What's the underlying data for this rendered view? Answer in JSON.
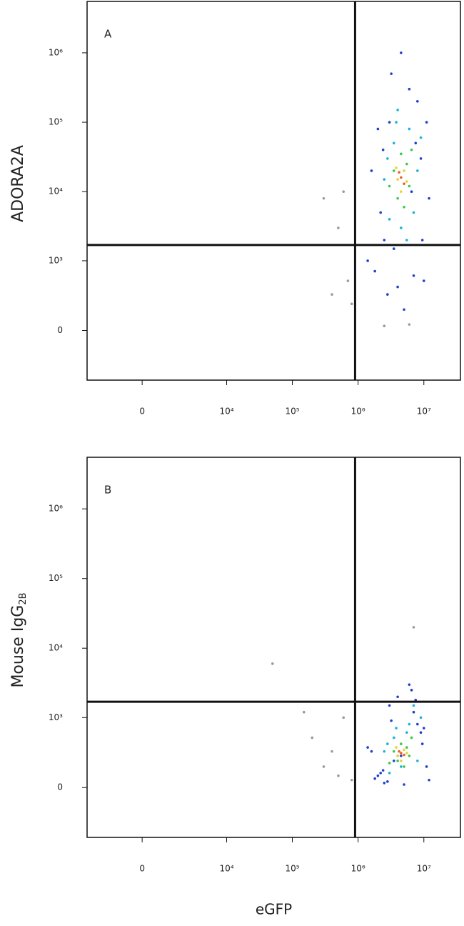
{
  "chart_data": [
    {
      "type": "scatter",
      "label": "A",
      "ylabel": "ADORA2A",
      "xscale": "asinh",
      "x_asinh_width": 1040,
      "yscale": "asinh",
      "y_asinh_width": 200,
      "xlim": [
        -3500,
        36000000
      ],
      "ylim": [
        -500,
        5500000
      ],
      "xticks": [
        0,
        {
          "value": 10000,
          "label": "10⁴"
        },
        {
          "value": 100000,
          "label": "10⁵"
        },
        {
          "value": 1000000,
          "label": "10⁶"
        },
        {
          "value": 10000000,
          "label": "10⁷"
        }
      ],
      "yticks": [
        0,
        {
          "value": 1000,
          "label": "10³"
        },
        {
          "value": 10000,
          "label": "10⁴"
        },
        {
          "value": 100000,
          "label": "10⁵"
        },
        {
          "value": 1000000,
          "label": "10⁶"
        }
      ],
      "gates": {
        "x": 900000,
        "y": 1700
      },
      "series": [
        {
          "color": "#9a9a9a",
          "x": [
            300000,
            500000,
            700000,
            400000,
            600000,
            800000,
            2500000,
            6000000
          ],
          "y": [
            8000,
            3000,
            500,
            300,
            10000,
            200,
            30,
            40
          ]
        },
        {
          "color": "#1f3fd0",
          "x": [
            1600000,
            2200000,
            3000000,
            9000000,
            12000000,
            2500000,
            8000000,
            4000000,
            3500000,
            6000000,
            11000000,
            2000000,
            7000000,
            2800000,
            5000000,
            9500000,
            3200000,
            1800000,
            6500000,
            4500000,
            10000000,
            2400000,
            1400000,
            7500000
          ],
          "y": [
            20000,
            5000,
            100000,
            30000,
            8000,
            2000,
            200000,
            400,
            1500,
            300000,
            100000,
            80000,
            600,
            300,
            150,
            2000,
            500000,
            700,
            10000,
            1000000,
            500,
            40000,
            1000,
            50000
          ]
        },
        {
          "color": "#18b4d8",
          "x": [
            2500000,
            3500000,
            6000000,
            8000000,
            3000000,
            7000000,
            4000000,
            5500000,
            2800000,
            9000000,
            4500000,
            3800000
          ],
          "y": [
            15000,
            50000,
            80000,
            20000,
            4000,
            5000,
            150000,
            2000,
            30000,
            60000,
            3000,
            100000
          ]
        },
        {
          "color": "#3cc84a",
          "x": [
            3500000,
            4500000,
            6000000,
            5000000,
            4000000,
            6500000,
            3000000,
            5500000
          ],
          "y": [
            20000,
            35000,
            12000,
            6000,
            8000,
            40000,
            12000,
            25000
          ]
        },
        {
          "color": "#e6d62a",
          "x": [
            4000000,
            5000000,
            4500000,
            5500000,
            3800000
          ],
          "y": [
            15000,
            20000,
            10000,
            14000,
            22000
          ]
        },
        {
          "color": "#e8602a",
          "x": [
            4500000,
            5000000,
            4200000
          ],
          "y": [
            16000,
            13000,
            19000
          ]
        }
      ]
    },
    {
      "type": "scatter",
      "label": "B",
      "ylabel": "Mouse IgG",
      "ylabel_sub": "2B",
      "xlabel": "eGFP",
      "xscale": "asinh",
      "x_asinh_width": 1040,
      "yscale": "asinh",
      "y_asinh_width": 200,
      "xlim": [
        -3500,
        36000000
      ],
      "ylim": [
        -500,
        5500000
      ],
      "xticks": [
        0,
        {
          "value": 10000,
          "label": "10⁴"
        },
        {
          "value": 100000,
          "label": "10⁵"
        },
        {
          "value": 1000000,
          "label": "10⁶"
        },
        {
          "value": 10000000,
          "label": "10⁷"
        }
      ],
      "yticks": [
        0,
        {
          "value": 1000,
          "label": "10³"
        },
        {
          "value": 10000,
          "label": "10⁴"
        },
        {
          "value": 100000,
          "label": "10⁵"
        },
        {
          "value": 1000000,
          "label": "10⁶"
        }
      ],
      "gates": {
        "x": 900000,
        "y": 1700
      },
      "series": [
        {
          "color": "#9a9a9a",
          "x": [
            200000,
            300000,
            500000,
            400000,
            600000,
            800000,
            150000,
            7000000,
            50000
          ],
          "y": [
            500,
            150,
            80,
            300,
            1000,
            50,
            1200,
            20000,
            6000
          ]
        },
        {
          "color": "#1f3fd0",
          "x": [
            1600000,
            2200000,
            3000000,
            9000000,
            12000000,
            2500000,
            8000000,
            4000000,
            3500000,
            6000000,
            11000000,
            2000000,
            7000000,
            2800000,
            5000000,
            9500000,
            3200000,
            1800000,
            6500000,
            4500000,
            10000000,
            2400000,
            1400000,
            7500000
          ],
          "y": [
            300,
            100,
            1500,
            600,
            50,
            30,
            800,
            2000,
            200,
            3000,
            150,
            80,
            1200,
            40,
            20,
            400,
            900,
            60,
            2500,
            250,
            700,
            120,
            350,
            1800
          ]
        },
        {
          "color": "#18b4d8",
          "x": [
            2500000,
            3500000,
            6000000,
            8000000,
            3000000,
            7000000,
            4000000,
            5500000,
            2800000,
            9000000,
            4500000,
            3800000
          ],
          "y": [
            300,
            500,
            800,
            200,
            100,
            1500,
            250,
            600,
            400,
            1000,
            150,
            700
          ]
        },
        {
          "color": "#3cc84a",
          "x": [
            3500000,
            4500000,
            6000000,
            5000000,
            4000000,
            6500000,
            3000000,
            5500000
          ],
          "y": [
            300,
            400,
            250,
            150,
            200,
            500,
            180,
            350
          ]
        },
        {
          "color": "#e6d62a",
          "x": [
            4000000,
            5000000,
            4500000,
            5500000,
            3800000
          ],
          "y": [
            250,
            320,
            200,
            280,
            350
          ]
        },
        {
          "color": "#e8602a",
          "x": [
            4500000,
            5000000,
            4200000
          ],
          "y": [
            280,
            260,
            300
          ]
        }
      ]
    }
  ]
}
